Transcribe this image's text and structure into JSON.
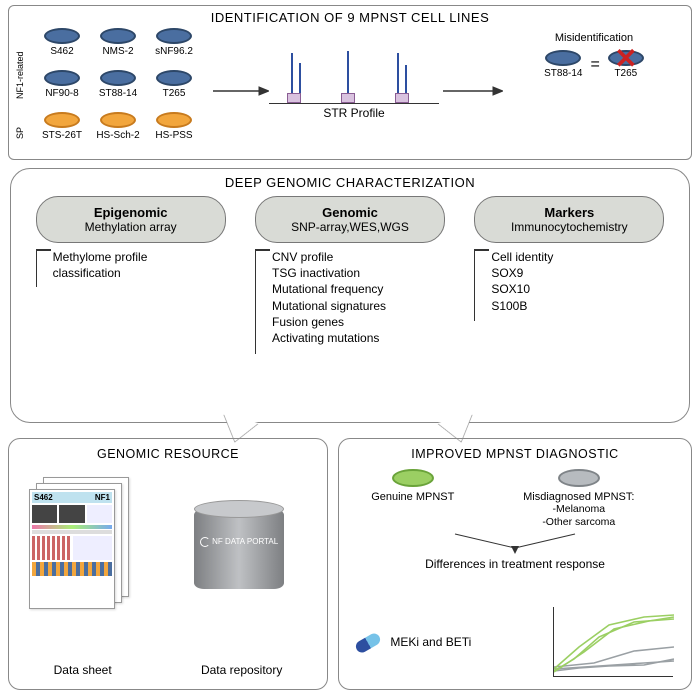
{
  "top": {
    "title": "IDENTIFICATION OF 9 MPNST CELL LINES",
    "side_labels": {
      "nf1": "NF1-related",
      "sp": "SP"
    },
    "cells_nf1": [
      "S462",
      "NMS-2",
      "sNF96.2",
      "NF90-8",
      "ST88-14",
      "T265"
    ],
    "cells_sp": [
      "STS-26T",
      "HS-Sch-2",
      "HS-PSS"
    ],
    "str_caption": "STR Profile",
    "misid_label": "Misidentification",
    "misid_left": "ST88-14",
    "misid_right": "T265",
    "colors": {
      "nf1": "#4a6ea0",
      "sp": "#f2a63d"
    }
  },
  "mid": {
    "title": "DEEP GENOMIC CHARACTERIZATION",
    "pills": [
      {
        "head": "Epigenomic",
        "sub": "Methylation array"
      },
      {
        "head": "Genomic",
        "sub": "SNP-array,WES,WGS"
      },
      {
        "head": "Markers",
        "sub": "Immunocytochemistry"
      }
    ],
    "cols": [
      [
        "Methylome profile",
        "classification"
      ],
      [
        "CNV profile",
        "TSG inactivation",
        "Mutational frequency",
        "Mutational signatures",
        "Fusion genes",
        "Activating mutations"
      ],
      [
        "Cell identity",
        "SOX9",
        "SOX10",
        "S100B"
      ]
    ]
  },
  "bottom_left": {
    "title": "GENOMIC RESOURCE",
    "sheet_label": "S462",
    "sheet_corner": "NF1",
    "cyl_label": "NF DATA PORTAL",
    "caption_left": "Data sheet",
    "caption_right": "Data repository"
  },
  "bottom_right": {
    "title": "IMPROVED MPNST DIAGNOSTIC",
    "genuine": "Genuine MPNST",
    "misdx_head": "Misdiagnosed MPNST:",
    "misdx_l1": "-Melanoma",
    "misdx_l2": "-Other sarcoma",
    "diff": "Differences in treatment response",
    "drug": "MEKi and BETi",
    "chart": {
      "green": "#9bcf63",
      "grey": "#9aa0a4",
      "lines_grey": [
        [
          0,
          8,
          30,
          10,
          60,
          12,
          90,
          14,
          120,
          16
        ],
        [
          0,
          6,
          25,
          9,
          55,
          11,
          90,
          12,
          120,
          18
        ],
        [
          0,
          10,
          40,
          14,
          80,
          26,
          120,
          30
        ]
      ],
      "lines_green": [
        [
          0,
          6,
          20,
          18,
          45,
          40,
          80,
          55,
          120,
          58
        ],
        [
          0,
          8,
          25,
          30,
          55,
          52,
          90,
          60,
          120,
          62
        ],
        [
          0,
          5,
          30,
          25,
          60,
          48,
          95,
          56,
          120,
          60
        ]
      ]
    }
  }
}
